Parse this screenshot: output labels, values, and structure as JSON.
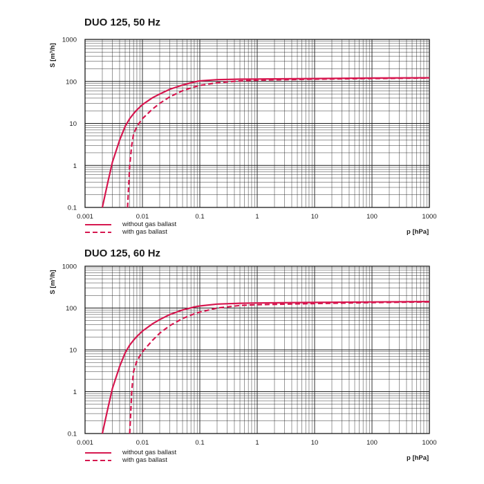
{
  "chart_data": [
    {
      "type": "line",
      "title": "DUO 125, 50 Hz",
      "xlabel": "p [hPa]",
      "ylabel": "S [m³/h]",
      "xscale": "log",
      "yscale": "log",
      "xlim": [
        0.001,
        1000
      ],
      "ylim": [
        0.1,
        1000
      ],
      "xticks": [
        "0.001",
        "0.01",
        "0.1",
        "1",
        "10",
        "100",
        "1000"
      ],
      "yticks": [
        "0.1",
        "1",
        "10",
        "100",
        "1000"
      ],
      "grid": true,
      "legend_position": "bottom-left",
      "series": [
        {
          "name": "without gas ballast",
          "style": "solid",
          "color": "#d6164e",
          "x": [
            0.002,
            0.0025,
            0.003,
            0.004,
            0.005,
            0.006,
            0.007,
            0.008,
            0.01,
            0.015,
            0.02,
            0.03,
            0.05,
            0.08,
            0.1,
            0.2,
            0.5,
            1,
            10,
            100,
            1000
          ],
          "y": [
            0.1,
            0.4,
            1.2,
            4,
            8.5,
            13,
            17,
            21,
            28,
            41,
            50,
            65,
            82,
            97,
            103,
            110,
            113,
            114,
            117,
            120,
            122
          ]
        },
        {
          "name": "with gas ballast",
          "style": "dashed",
          "color": "#d6164e",
          "x": [
            0.0055,
            0.006,
            0.0065,
            0.007,
            0.008,
            0.01,
            0.015,
            0.02,
            0.03,
            0.05,
            0.08,
            0.1,
            0.2,
            0.5,
            1,
            10,
            100,
            1000
          ],
          "y": [
            0.1,
            1,
            3,
            5.5,
            8.5,
            13,
            22,
            30,
            43,
            60,
            74,
            80,
            93,
            103,
            107,
            113,
            117,
            120
          ]
        }
      ]
    },
    {
      "type": "line",
      "title": "DUO 125, 60 Hz",
      "xlabel": "p [hPa]",
      "ylabel": "S [m³/h]",
      "xscale": "log",
      "yscale": "log",
      "xlim": [
        0.001,
        1000
      ],
      "ylim": [
        0.1,
        1000
      ],
      "xticks": [
        "0.001",
        "0.01",
        "0.1",
        "1",
        "10",
        "100",
        "1000"
      ],
      "yticks": [
        "0.1",
        "1",
        "10",
        "100",
        "1000"
      ],
      "grid": true,
      "legend_position": "bottom-left",
      "series": [
        {
          "name": "without gas ballast",
          "style": "solid",
          "color": "#d6164e",
          "x": [
            0.002,
            0.0025,
            0.003,
            0.004,
            0.005,
            0.006,
            0.007,
            0.008,
            0.01,
            0.015,
            0.02,
            0.03,
            0.05,
            0.08,
            0.1,
            0.2,
            0.5,
            1,
            10,
            100,
            1000
          ],
          "y": [
            0.1,
            0.4,
            1.2,
            4,
            8.5,
            13,
            17,
            21,
            28,
            42,
            53,
            70,
            90,
            106,
            112,
            124,
            130,
            132,
            136,
            140,
            143
          ]
        },
        {
          "name": "with gas ballast",
          "style": "dashed",
          "color": "#d6164e",
          "x": [
            0.006,
            0.0065,
            0.007,
            0.008,
            0.01,
            0.015,
            0.02,
            0.03,
            0.05,
            0.08,
            0.1,
            0.2,
            0.5,
            1,
            10,
            100,
            1000
          ],
          "y": [
            0.1,
            1,
            3,
            5.5,
            9,
            17,
            25,
            38,
            56,
            73,
            80,
            100,
            115,
            120,
            128,
            135,
            140
          ]
        }
      ]
    }
  ]
}
